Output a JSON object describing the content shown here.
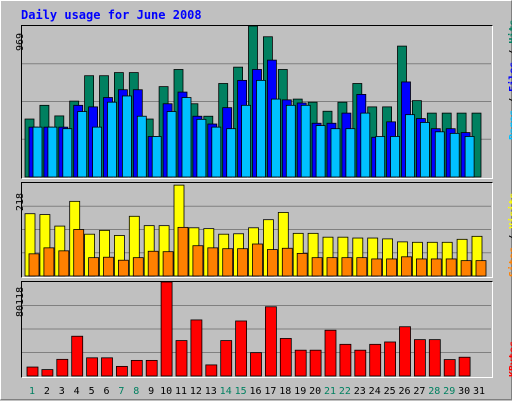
{
  "chart_data": {
    "type": "bar",
    "title": "Daily usage for June 2008",
    "categories": [
      "1",
      "2",
      "3",
      "4",
      "5",
      "6",
      "7",
      "8",
      "9",
      "10",
      "11",
      "12",
      "13",
      "14",
      "15",
      "16",
      "17",
      "18",
      "19",
      "20",
      "21",
      "22",
      "23",
      "24",
      "25",
      "26",
      "27",
      "28",
      "29",
      "30",
      "31"
    ],
    "weekend_days": [
      "1",
      "7",
      "8",
      "14",
      "15",
      "21",
      "22",
      "28",
      "29"
    ],
    "panels": [
      {
        "name": "pages-files-hits",
        "max_label": "969",
        "ylim": [
          0,
          969
        ],
        "series": [
          {
            "name": "Hits",
            "color": "#008060",
            "values": [
              372,
              460,
              392,
              487,
              650,
              650,
              670,
              670,
              372,
              580,
              690,
              470,
              390,
              600,
              705,
              969,
              900,
              690,
              500,
              480,
              422,
              480,
              600,
              450,
              450,
              840,
              490,
              410,
              410,
              410,
              410
            ]
          },
          {
            "name": "Files",
            "color": "#0000ff",
            "values": [
              320,
              320,
              320,
              460,
              450,
              510,
              560,
              560,
              260,
              470,
              545,
              390,
              340,
              445,
              620,
              690,
              750,
              495,
              475,
              345,
              345,
              410,
              530,
              255,
              354,
              610,
              375,
              310,
              310,
              285,
              null
            ]
          },
          {
            "name": "Pages",
            "color": "#00c0ff",
            "values": [
              320,
              320,
              310,
              420,
              320,
              480,
              520,
              390,
              260,
              420,
              510,
              370,
              320,
              310,
              460,
              620,
              500,
              460,
              460,
              330,
              310,
              310,
              410,
              260,
              260,
              400,
              350,
              290,
              280,
              260,
              null
            ]
          }
        ]
      },
      {
        "name": "sites-visits",
        "max_label": "218",
        "ylim": [
          0,
          218
        ],
        "series": [
          {
            "name": "Visits",
            "color": "#ffff00",
            "values": [
              146,
              144,
              117,
              175,
              98,
              107,
              95,
              140,
              118,
              118,
              213,
              113,
              111,
              98,
              99,
              113,
              132,
              149,
              100,
              100,
              91,
              91,
              89,
              89,
              87,
              80,
              79,
              79,
              79,
              86,
              93
            ]
          },
          {
            "name": "Sites",
            "color": "#ff8000",
            "values": [
              52,
              66,
              59,
              109,
              43,
              44,
              37,
              43,
              58,
              57,
              114,
              71,
              66,
              64,
              64,
              75,
              62,
              65,
              53,
              43,
              43,
              43,
              43,
              40,
              40,
              45,
              40,
              40,
              40,
              36,
              36
            ]
          }
        ]
      },
      {
        "name": "kbytes",
        "max_label": "80118",
        "ylim": [
          0,
          80118
        ],
        "series": [
          {
            "name": "KBytes",
            "color": "#ff0000",
            "values": [
              7640,
              5460,
              14200,
              33900,
              15500,
              15500,
              8200,
              13300,
              13300,
              80118,
              30200,
              47800,
              9460,
              30200,
              46900,
              19900,
              59000,
              32000,
              22000,
              22000,
              39000,
              27000,
              22000,
              27000,
              29000,
              42000,
              31000,
              31000,
              14000,
              16000,
              null
            ]
          }
        ]
      }
    ],
    "right_legend_top": [
      {
        "text": "Pages",
        "color": "#00c0ff"
      },
      {
        "text": " / ",
        "color": "#000000"
      },
      {
        "text": "Files",
        "color": "#0000ff"
      },
      {
        "text": " / ",
        "color": "#000000"
      },
      {
        "text": "Hits",
        "color": "#008060"
      }
    ],
    "right_legend_mid": [
      {
        "text": "Sites",
        "color": "#ff8000"
      },
      {
        "text": " / ",
        "color": "#000000"
      },
      {
        "text": "Visits",
        "color": "#ffff00"
      }
    ],
    "right_legend_bottom": [
      {
        "text": "KBytes",
        "color": "#ff0000"
      }
    ]
  }
}
